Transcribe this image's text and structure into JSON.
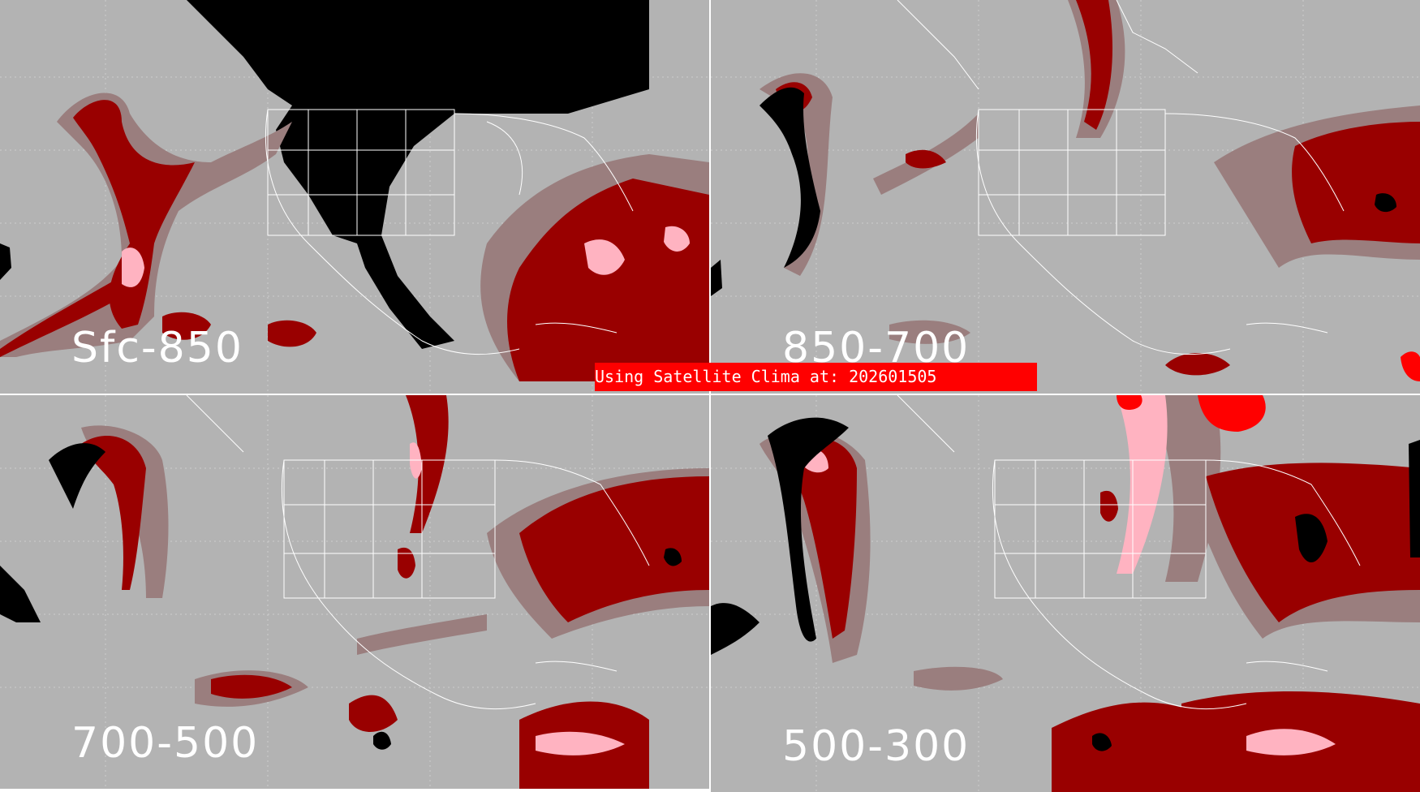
{
  "panels": [
    {
      "id": "sfc-850",
      "label": "Sfc-850"
    },
    {
      "id": "850-700",
      "label": "850-700"
    },
    {
      "id": "700-500",
      "label": "700-500"
    },
    {
      "id": "500-300",
      "label": "500-300"
    }
  ],
  "banner": {
    "text": "Using Satellite Clima at: 202601505"
  },
  "colors": {
    "background": "#b3b3b3",
    "no_data": "#000000",
    "low": "#9a7e7e",
    "moderate": "#990000",
    "high": "#cc0000",
    "extreme": "#ffb3c1",
    "bright_red": "#ff0000",
    "boundaries": "#ffffff"
  }
}
